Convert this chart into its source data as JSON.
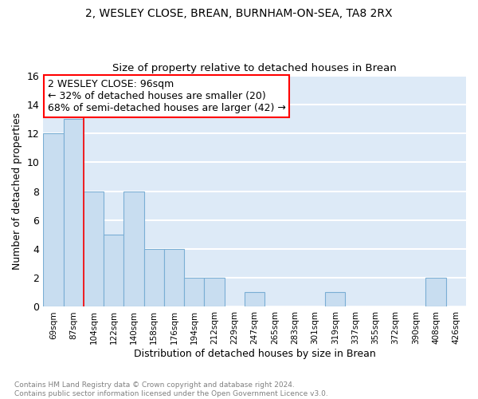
{
  "title": "2, WESLEY CLOSE, BREAN, BURNHAM-ON-SEA, TA8 2RX",
  "subtitle": "Size of property relative to detached houses in Brean",
  "xlabel": "Distribution of detached houses by size in Brean",
  "ylabel": "Number of detached properties",
  "categories": [
    "69sqm",
    "87sqm",
    "104sqm",
    "122sqm",
    "140sqm",
    "158sqm",
    "176sqm",
    "194sqm",
    "212sqm",
    "229sqm",
    "247sqm",
    "265sqm",
    "283sqm",
    "301sqm",
    "319sqm",
    "337sqm",
    "355sqm",
    "372sqm",
    "390sqm",
    "408sqm",
    "426sqm"
  ],
  "values": [
    12,
    13,
    8,
    5,
    8,
    4,
    4,
    2,
    2,
    0,
    1,
    0,
    0,
    0,
    1,
    0,
    0,
    0,
    0,
    2,
    0
  ],
  "bar_color": "#c8ddf0",
  "bar_edgecolor": "#7aaed4",
  "red_line_index": 1.5,
  "annotation_title": "2 WESLEY CLOSE: 96sqm",
  "annotation_line1": "← 32% of detached houses are smaller (20)",
  "annotation_line2": "68% of semi-detached houses are larger (42) →",
  "ylim": [
    0,
    16
  ],
  "yticks": [
    0,
    2,
    4,
    6,
    8,
    10,
    12,
    14,
    16
  ],
  "background_color": "#ddeaf7",
  "grid_color": "#ffffff",
  "footer": "Contains HM Land Registry data © Crown copyright and database right 2024.\nContains public sector information licensed under the Open Government Licence v3.0.",
  "title_fontsize": 10,
  "subtitle_fontsize": 9.5,
  "xlabel_fontsize": 9,
  "ylabel_fontsize": 9,
  "annotation_fontsize": 9
}
